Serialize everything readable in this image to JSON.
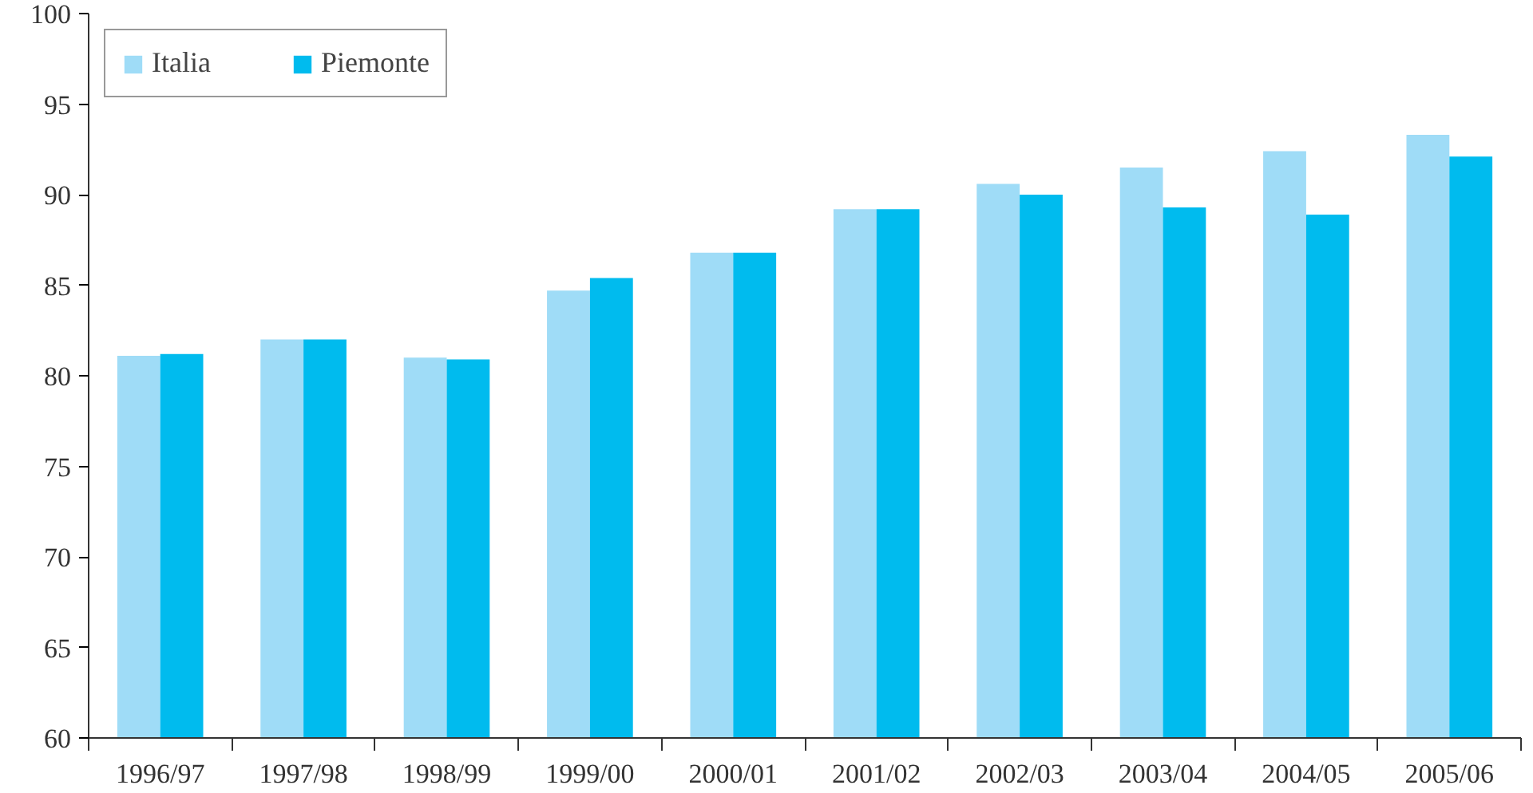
{
  "chart_data": {
    "type": "bar",
    "categories": [
      "1996/97",
      "1997/98",
      "1998/99",
      "1999/00",
      "2000/01",
      "2001/02",
      "2002/03",
      "2003/04",
      "2004/05",
      "2005/06"
    ],
    "series": [
      {
        "name": "Italia",
        "color": "#9fdcf7",
        "values": [
          81.1,
          82.0,
          81.0,
          84.7,
          86.8,
          89.2,
          90.6,
          91.5,
          92.4,
          93.3
        ]
      },
      {
        "name": "Piemonte",
        "color": "#00bbee",
        "values": [
          81.2,
          82.0,
          80.9,
          85.4,
          86.8,
          89.2,
          90.0,
          89.3,
          88.9,
          92.1
        ]
      }
    ],
    "ylim": [
      60,
      100
    ],
    "yticks": [
      60,
      65,
      70,
      75,
      80,
      85,
      90,
      95,
      100
    ],
    "grid": false,
    "legend": "top left"
  }
}
